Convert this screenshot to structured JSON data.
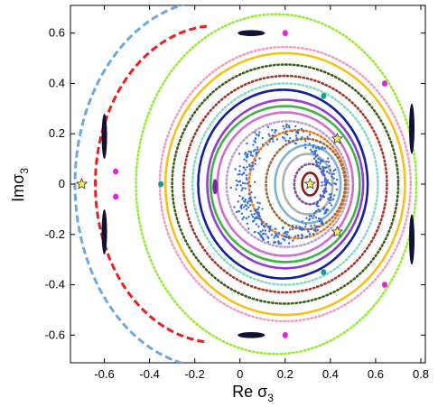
{
  "chart_data": {
    "type": "scatter",
    "title": "",
    "xlabel": {
      "main": "Re σ",
      "sub": "3"
    },
    "ylabel": {
      "main": "Imσ",
      "sub": "3"
    },
    "xlim": [
      -0.75,
      0.82
    ],
    "ylim": [
      -0.71,
      0.71
    ],
    "x_ticks": [
      -0.6,
      -0.4,
      -0.2,
      0,
      0.2,
      0.4,
      0.6,
      0.8
    ],
    "x_tick_labels": [
      "-0.6",
      "-0.4",
      "-0.2",
      "0",
      "0.2",
      "0.4",
      "0.6",
      "0.8"
    ],
    "y_ticks": [
      -0.6,
      -0.4,
      -0.2,
      0,
      0.2,
      0.4,
      0.6
    ],
    "y_tick_labels": [
      "-0.6",
      "-0.4",
      "-0.2",
      "0",
      "0.2",
      "0.4",
      "0.6"
    ],
    "grid": false,
    "legend": "none",
    "series": [
      {
        "color": "#8b1a1a",
        "style": "solid",
        "cx": 0.31,
        "cy": 0.0,
        "rx": 0.035,
        "ry": 0.045
      },
      {
        "color": "#7b4fa0",
        "style": "dotted",
        "cx": 0.31,
        "cy": 0.0,
        "rx": 0.07,
        "ry": 0.08
      },
      {
        "color": "#b0b0b0",
        "style": "solid",
        "cx": 0.3,
        "cy": 0.0,
        "rx": 0.11,
        "ry": 0.12
      },
      {
        "color": "#7fb3d5",
        "style": "solid",
        "cx": 0.3,
        "cy": 0.0,
        "rx": 0.145,
        "ry": 0.155
      },
      {
        "color": "#9b6b3a",
        "style": "dotted",
        "cx": 0.29,
        "cy": 0.0,
        "rx": 0.175,
        "ry": 0.18
      },
      {
        "color": "#e87722",
        "style": "dotted",
        "cx": 0.255,
        "cy": 0.0,
        "rx": 0.215,
        "ry": 0.215
      },
      {
        "color": "#b7a1cf",
        "style": "dotted",
        "cx": 0.21,
        "cy": 0.0,
        "rx": 0.27,
        "ry": 0.25
      },
      {
        "color": "#cf6fd0",
        "style": "solid",
        "cx": 0.2,
        "cy": 0.0,
        "rx": 0.3,
        "ry": 0.285
      },
      {
        "color": "#3fb24a",
        "style": "solid",
        "cx": 0.2,
        "cy": 0.0,
        "rx": 0.33,
        "ry": 0.31
      },
      {
        "color": "#8e3fd1",
        "style": "solid",
        "cx": 0.2,
        "cy": 0.0,
        "rx": 0.345,
        "ry": 0.335
      },
      {
        "color": "#12209c",
        "style": "solid",
        "cx": 0.19,
        "cy": 0.0,
        "rx": 0.375,
        "ry": 0.375
      },
      {
        "color": "#88d8c3",
        "style": "dotted",
        "cx": 0.2,
        "cy": 0.0,
        "rx": 0.41,
        "ry": 0.4
      },
      {
        "color": "#a0392c",
        "style": "dotted",
        "cx": 0.2,
        "cy": 0.0,
        "rx": 0.45,
        "ry": 0.43
      },
      {
        "color": "#3c5e1c",
        "style": "dotted",
        "cx": 0.2,
        "cy": 0.0,
        "rx": 0.5,
        "ry": 0.475
      },
      {
        "color": "#f4c21a",
        "style": "solid",
        "cx": 0.2,
        "cy": 0.0,
        "rx": 0.53,
        "ry": 0.52
      },
      {
        "color": "#ef9fc2",
        "style": "dotted",
        "cx": 0.2,
        "cy": 0.0,
        "rx": 0.555,
        "ry": 0.545
      },
      {
        "color": "#97ec3a",
        "style": "dotted",
        "cx": 0.16,
        "cy": 0.0,
        "rx": 0.62,
        "ry": 0.675
      }
    ],
    "islands": [
      {
        "color": "#111133",
        "x": [
          -0.6,
          -0.6
        ],
        "y": [
          0.19,
          -0.19
        ],
        "rx": 0.012,
        "ry": 0.09
      },
      {
        "color": "#111133",
        "x": [
          0.76,
          0.76
        ],
        "y": [
          0.22,
          -0.22
        ],
        "rx": 0.012,
        "ry": 0.1
      },
      {
        "color": "#111133",
        "x": [
          0.05,
          0.05
        ],
        "y": [
          0.6,
          -0.6
        ],
        "rx": 0.06,
        "ry": 0.012
      },
      {
        "color": "#e81ee0",
        "x": [
          -0.55,
          -0.55,
          0.64,
          0.64,
          0.2,
          0.2
        ],
        "y": [
          0.05,
          -0.05,
          0.4,
          -0.4,
          0.6,
          -0.6
        ],
        "rx": 0.012,
        "ry": 0.012
      },
      {
        "color": "#1a9a8c",
        "x": [
          -0.35,
          0.37,
          0.37
        ],
        "y": [
          0.0,
          0.35,
          -0.35
        ],
        "rx": 0.012,
        "ry": 0.012
      },
      {
        "color": "#7a2d9a",
        "x": [
          -0.11
        ],
        "y": [
          -0.01
        ],
        "rx": 0.012,
        "ry": 0.03
      }
    ],
    "chaotic_layer": {
      "color": "#2f6de0",
      "cx": 0.19,
      "cy": 0.0,
      "rx": 0.2,
      "ry": 0.2
    },
    "outer_arcs": [
      {
        "color": "#e82020",
        "cx": -0.1,
        "cy": 0.0,
        "rx": 0.54,
        "ry": 0.63,
        "a_start": 95,
        "a_end": 265
      },
      {
        "color": "#6fa8dc",
        "cx": -0.12,
        "cy": 0.0,
        "rx": 0.61,
        "ry": 0.73,
        "a_start": 78,
        "a_end": 282
      }
    ],
    "stars": [
      {
        "x": 0.31,
        "y": 0.0
      },
      {
        "x": -0.7,
        "y": 0.0
      },
      {
        "x": 0.43,
        "y": 0.18
      },
      {
        "x": 0.43,
        "y": -0.19
      }
    ]
  }
}
